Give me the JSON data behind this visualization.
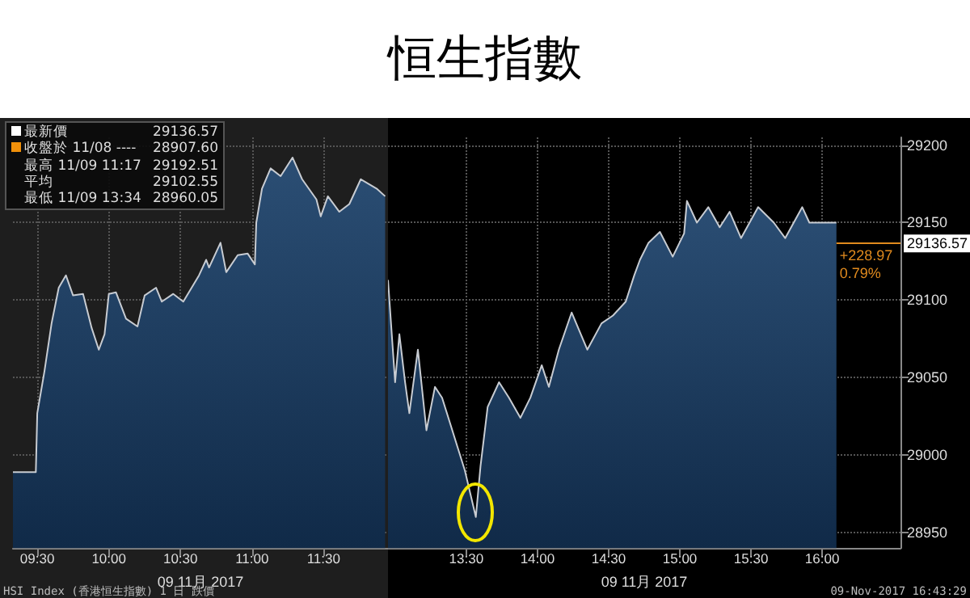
{
  "chart_data": [
    {
      "type": "area",
      "xlabel": "09 11月 2017",
      "xlim": [
        9.33,
        11.95
      ],
      "xticks": [
        {
          "value": 9.5,
          "label": "09:30"
        },
        {
          "value": 10,
          "label": "10:00"
        },
        {
          "value": 10.5,
          "label": "10:30"
        },
        {
          "value": 11,
          "label": "11:00"
        },
        {
          "value": 11.5,
          "label": "11:30"
        }
      ],
      "ylim": [
        28940,
        29205
      ],
      "yticks": [
        28950,
        29000,
        29050,
        29100,
        29150,
        29200
      ],
      "tick_labels": "x",
      "grid": true,
      "marker": "none",
      "series": [
        {
          "color": "#c8ccd2",
          "x": [
            9.33,
            9.49,
            9.5,
            9.55,
            9.6,
            9.65,
            9.7,
            9.75,
            9.82,
            9.88,
            9.93,
            9.97,
            10.0,
            10.05,
            10.12,
            10.2,
            10.25,
            10.33,
            10.37,
            10.45,
            10.52,
            10.63,
            10.68,
            10.7,
            10.78,
            10.82,
            10.9,
            10.97,
            11.02,
            11.03,
            11.07,
            11.13,
            11.2,
            11.283,
            11.35,
            11.45,
            11.48,
            11.53,
            11.61,
            11.68,
            11.76,
            11.87,
            11.93
          ],
          "values": [
            28989,
            28989,
            29027,
            29054,
            29085,
            29108,
            29116,
            29103,
            29104,
            29082,
            29068,
            29078,
            29104,
            29105,
            29088,
            29083,
            29103,
            29108,
            29099,
            29104,
            29099,
            29116,
            29126,
            29121,
            29137,
            29118,
            29129,
            29130,
            29123,
            29150,
            29172,
            29185,
            29180,
            29192,
            29178,
            29165,
            29154,
            29167,
            29157,
            29162,
            29178,
            29172,
            29167
          ]
        }
      ],
      "annotations": [
        "最新價",
        "29136.57",
        "收盤於 11/08 ----",
        "28907.60",
        "最高 11/09 11:17",
        "29192.51",
        "平均",
        "29102.55",
        "最低 11/09 13:34",
        "28960.05",
        "HSI Index (香港恒生指數) 1 日 跌價"
      ]
    },
    {
      "type": "area",
      "title": "恒生指數",
      "xlabel": "09 11月 2017",
      "xlim": [
        12.95,
        16.55
      ],
      "xticks": [
        {
          "value": 13.5,
          "label": "13:30"
        },
        {
          "value": 14,
          "label": "14:00"
        },
        {
          "value": 14.5,
          "label": "14:30"
        },
        {
          "value": 15,
          "label": "15:00"
        },
        {
          "value": 15.5,
          "label": "15:30"
        },
        {
          "value": 16,
          "label": "16:00"
        }
      ],
      "ylim": [
        28940,
        29205
      ],
      "yticks": [
        28950,
        29000,
        29050,
        29100,
        29150,
        29200
      ],
      "grid": true,
      "marker": "none",
      "series": [
        {
          "color": "#c8ccd2",
          "x": [
            12.95,
            13.0,
            13.03,
            13.07,
            13.1,
            13.16,
            13.22,
            13.28,
            13.33,
            13.49,
            13.567,
            13.6,
            13.65,
            13.73,
            13.8,
            13.88,
            13.95,
            14.03,
            14.08,
            14.15,
            14.24,
            14.35,
            14.45,
            14.53,
            14.62,
            14.68,
            14.72,
            14.78,
            14.86,
            14.95,
            15.03,
            15.05,
            15.12,
            15.2,
            15.28,
            15.35,
            15.43,
            15.55,
            15.66,
            15.74,
            15.86,
            15.91,
            16.1
          ],
          "values": [
            29113,
            29047,
            29078,
            29047,
            29027,
            29068,
            29016,
            29044,
            29037,
            28990,
            28960,
            28993,
            29031,
            29047,
            29037,
            29024,
            29037,
            29058,
            29044,
            29068,
            29092,
            29068,
            29085,
            29090,
            29099,
            29116,
            29126,
            29137,
            29144,
            29128,
            29143,
            29164,
            29150,
            29160,
            29147,
            29157,
            29140,
            29160,
            29150,
            29140,
            29160,
            29150,
            29150
          ]
        }
      ],
      "ref_lines": [
        {
          "axis": "y",
          "value": 29136.57,
          "label": "29136.57",
          "color": "#e08a1e"
        }
      ],
      "annotations": [
        {
          "text": "+228.97",
          "x": 16.1,
          "y": 29136.57
        },
        {
          "text": "0.79%",
          "x": 16.1,
          "y": 29136.57
        },
        "09-Nov-2017 16:43:29"
      ]
    }
  ]
}
